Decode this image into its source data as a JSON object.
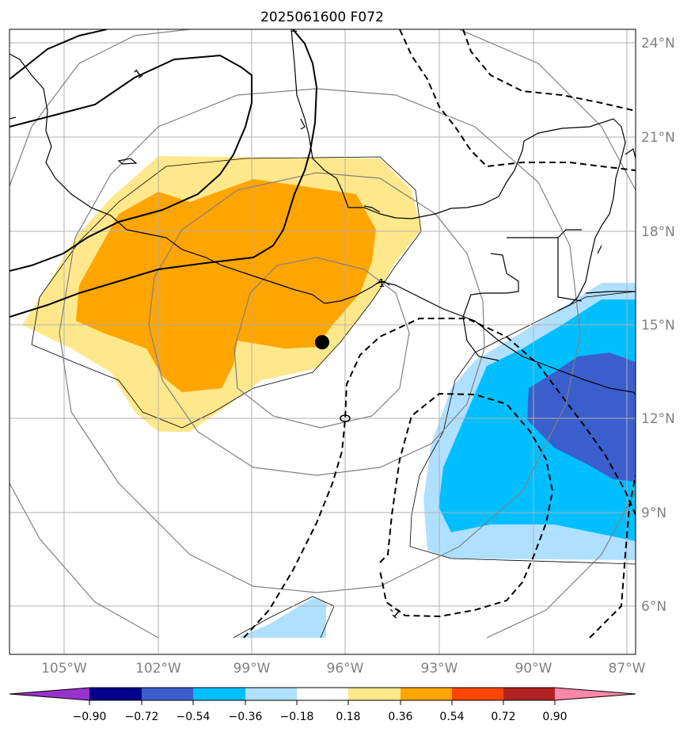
{
  "title": "2025061600 F072",
  "latitude_labels": [
    "24°N",
    "21°N",
    "18°N",
    "15°N",
    "12°N",
    "9°N",
    "6°N"
  ],
  "longitude_labels": [
    "105°W",
    "102°W",
    "99°W",
    "96°W",
    "93°W",
    "90°W",
    "87°W"
  ],
  "contour_labels": [
    "1",
    "1",
    "1",
    "-1"
  ],
  "colorbar": {
    "tick_labels": [
      "−0.90",
      "−0.72",
      "−0.54",
      "−0.36",
      "−0.18",
      "0.18",
      "0.36",
      "0.54",
      "0.72",
      "0.90"
    ],
    "colors": [
      "#9932cc",
      "#00008b",
      "#3a5fcd",
      "#00bfff",
      "#b0e0ff",
      "#ffffff",
      "#ffe88c",
      "#ffa500",
      "#ff4500",
      "#b22222",
      "#ff88aa"
    ]
  },
  "colors": {
    "positive_light": "#ffe88c",
    "positive_mid": "#ffa500",
    "negative_light": "#b0e0ff",
    "negative_mid": "#00bfff",
    "negative_dark": "#3a5fcd",
    "graticule": "#b0b0b0",
    "range_rings": "#808080"
  },
  "marker": "storm-center-dot"
}
